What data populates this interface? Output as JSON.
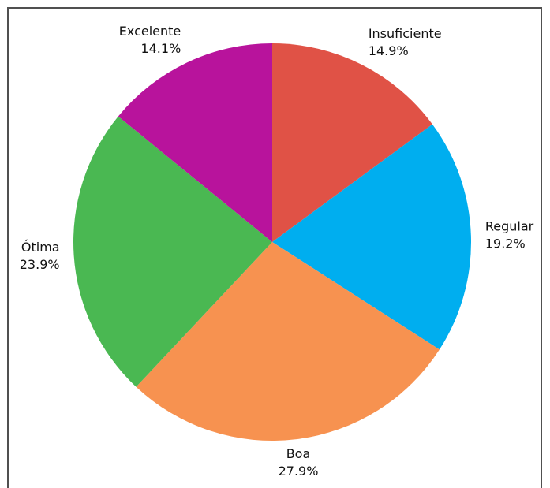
{
  "chart_data": {
    "type": "pie",
    "title": "",
    "start_angle_deg": 0,
    "direction": "clockwise",
    "slices": [
      {
        "label": "Insuficiente",
        "value": 14.9,
        "pct_text": "14.9%",
        "color": "#E05246"
      },
      {
        "label": "Regular",
        "value": 19.2,
        "pct_text": "19.2%",
        "color": "#00AEEF"
      },
      {
        "label": "Boa",
        "value": 27.9,
        "pct_text": "27.9%",
        "color": "#F79250"
      },
      {
        "label": "Ótima",
        "value": 23.9,
        "pct_text": "23.9%",
        "color": "#4AB852"
      },
      {
        "label": "Excelente",
        "value": 14.1,
        "pct_text": "14.1%",
        "color": "#B8139C"
      }
    ]
  }
}
